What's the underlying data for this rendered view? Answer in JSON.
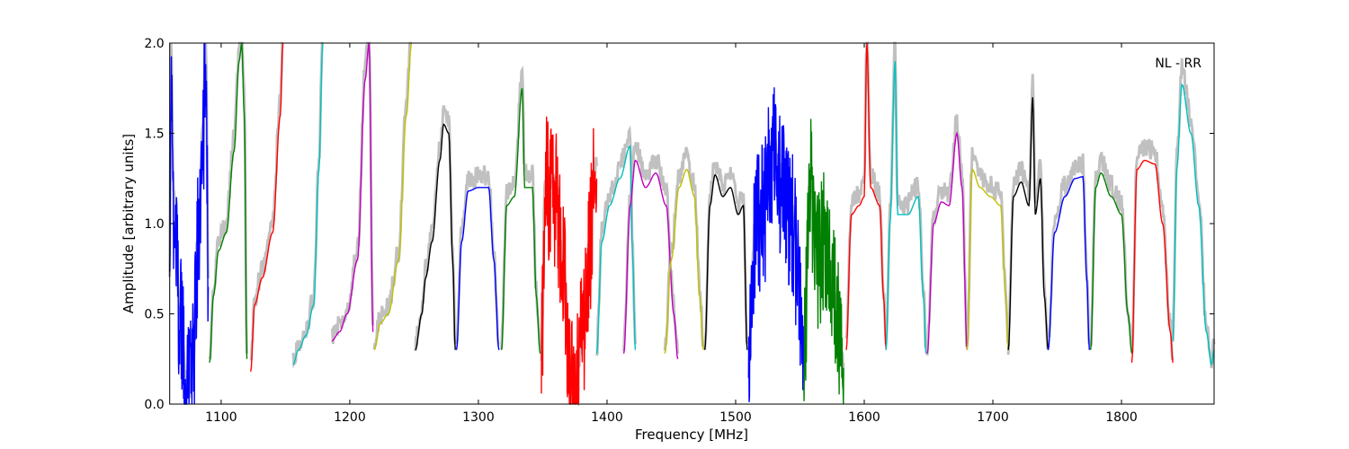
{
  "chart_data": {
    "type": "line",
    "title": "",
    "annotation": "NL - RR",
    "xlabel": "Frequency [MHz]",
    "ylabel": "Amplitude [arbitrary units]",
    "xlim": [
      1060,
      1872
    ],
    "ylim": [
      0,
      2.0
    ],
    "xticks": [
      1100,
      1200,
      1300,
      1400,
      1500,
      1600,
      1700,
      1800
    ],
    "yticks": [
      0.0,
      0.5,
      1.0,
      1.5,
      2.0
    ],
    "ytick_labels": [
      "0.0",
      "0.5",
      "1.0",
      "1.5",
      "2.0"
    ],
    "grid": false,
    "background_color": "#c0c0c0",
    "series": [
      {
        "color": "#0000ff",
        "noisy": true,
        "points": [
          [
            1060,
            0.6
          ],
          [
            1061,
            2.0
          ],
          [
            1063,
            1.1
          ],
          [
            1068,
            0.5
          ],
          [
            1072,
            0.15
          ],
          [
            1075,
            0.02
          ],
          [
            1078,
            0.2
          ],
          [
            1082,
            0.9
          ],
          [
            1086,
            1.5
          ],
          [
            1088,
            2.0
          ],
          [
            1090,
            0.65
          ]
        ]
      },
      {
        "color": "#008000",
        "noisy": false,
        "points": [
          [
            1091,
            0.23
          ],
          [
            1094,
            0.6
          ],
          [
            1098,
            0.85
          ],
          [
            1104,
            0.95
          ],
          [
            1110,
            1.4
          ],
          [
            1114,
            1.9
          ],
          [
            1116,
            2.0
          ],
          [
            1118,
            1.6
          ],
          [
            1120,
            0.25
          ]
        ]
      },
      {
        "color": "#ff0000",
        "noisy": false,
        "points": [
          [
            1123,
            0.18
          ],
          [
            1126,
            0.55
          ],
          [
            1132,
            0.7
          ],
          [
            1140,
            0.95
          ],
          [
            1146,
            1.6
          ],
          [
            1148,
            2.0
          ]
        ]
      },
      {
        "color": "#00c0c0",
        "noisy": false,
        "points": [
          [
            1156,
            0.22
          ],
          [
            1160,
            0.3
          ],
          [
            1166,
            0.38
          ],
          [
            1172,
            0.55
          ],
          [
            1176,
            1.3
          ],
          [
            1179,
            2.0
          ]
        ]
      },
      {
        "color": "#c000c0",
        "noisy": false,
        "points": [
          [
            1186,
            0.35
          ],
          [
            1192,
            0.4
          ],
          [
            1198,
            0.5
          ],
          [
            1206,
            0.8
          ],
          [
            1212,
            1.8
          ],
          [
            1215,
            2.0
          ],
          [
            1218,
            0.4
          ]
        ]
      },
      {
        "color": "#c0c000",
        "noisy": false,
        "points": [
          [
            1219,
            0.3
          ],
          [
            1224,
            0.45
          ],
          [
            1230,
            0.5
          ],
          [
            1238,
            0.8
          ],
          [
            1244,
            1.6
          ],
          [
            1248,
            2.0
          ]
        ]
      },
      {
        "color": "#000000",
        "noisy": false,
        "points": [
          [
            1251,
            0.3
          ],
          [
            1256,
            0.5
          ],
          [
            1259,
            0.7
          ],
          [
            1264,
            0.9
          ],
          [
            1270,
            1.35
          ],
          [
            1273,
            1.55
          ],
          [
            1277,
            1.5
          ],
          [
            1280,
            0.8
          ],
          [
            1282,
            0.3
          ]
        ]
      },
      {
        "color": "#0000ff",
        "noisy": false,
        "points": [
          [
            1283,
            0.3
          ],
          [
            1287,
            0.9
          ],
          [
            1292,
            1.18
          ],
          [
            1300,
            1.2
          ],
          [
            1308,
            1.2
          ],
          [
            1312,
            0.8
          ],
          [
            1316,
            0.3
          ]
        ]
      },
      {
        "color": "#008000",
        "noisy": false,
        "points": [
          [
            1318,
            0.3
          ],
          [
            1322,
            1.1
          ],
          [
            1328,
            1.15
          ],
          [
            1334,
            1.75
          ],
          [
            1336,
            1.2
          ],
          [
            1342,
            1.2
          ],
          [
            1345,
            0.6
          ],
          [
            1348,
            0.28
          ]
        ]
      },
      {
        "color": "#ff0000",
        "noisy": true,
        "points": [
          [
            1349,
            0.25
          ],
          [
            1352,
            1.2
          ],
          [
            1360,
            1.15
          ],
          [
            1366,
            0.7
          ],
          [
            1372,
            0.15
          ],
          [
            1375,
            0.0
          ],
          [
            1380,
            0.3
          ],
          [
            1386,
            0.8
          ],
          [
            1390,
            1.2
          ],
          [
            1392,
            1.25
          ]
        ]
      },
      {
        "color": "#00c0c0",
        "noisy": false,
        "points": [
          [
            1392,
            0.28
          ],
          [
            1396,
            0.9
          ],
          [
            1402,
            1.1
          ],
          [
            1410,
            1.25
          ],
          [
            1418,
            1.43
          ],
          [
            1420,
            0.8
          ],
          [
            1422,
            0.3
          ]
        ]
      },
      {
        "color": "#c000c0",
        "noisy": false,
        "points": [
          [
            1413,
            0.28
          ],
          [
            1418,
            1.1
          ],
          [
            1422,
            1.35
          ],
          [
            1430,
            1.2
          ],
          [
            1438,
            1.28
          ],
          [
            1446,
            1.1
          ],
          [
            1452,
            0.5
          ],
          [
            1455,
            0.25
          ]
        ]
      },
      {
        "color": "#c0c000",
        "noisy": false,
        "points": [
          [
            1445,
            0.28
          ],
          [
            1450,
            0.8
          ],
          [
            1456,
            1.2
          ],
          [
            1462,
            1.3
          ],
          [
            1468,
            1.15
          ],
          [
            1472,
            0.6
          ],
          [
            1475,
            0.3
          ]
        ]
      },
      {
        "color": "#000000",
        "noisy": false,
        "points": [
          [
            1476,
            0.3
          ],
          [
            1480,
            1.1
          ],
          [
            1484,
            1.27
          ],
          [
            1490,
            1.15
          ],
          [
            1496,
            1.2
          ],
          [
            1502,
            1.05
          ],
          [
            1506,
            1.1
          ],
          [
            1509,
            0.3
          ]
        ]
      },
      {
        "color": "#0000ff",
        "noisy": true,
        "points": [
          [
            1510,
            0.3
          ],
          [
            1516,
            1.0
          ],
          [
            1522,
            1.05
          ],
          [
            1528,
            1.4
          ],
          [
            1536,
            1.2
          ],
          [
            1544,
            1.0
          ],
          [
            1550,
            0.6
          ],
          [
            1553,
            0.2
          ]
        ]
      },
      {
        "color": "#008000",
        "noisy": true,
        "points": [
          [
            1553,
            0.3
          ],
          [
            1558,
            1.2
          ],
          [
            1564,
            0.8
          ],
          [
            1570,
            0.9
          ],
          [
            1576,
            0.6
          ],
          [
            1580,
            0.4
          ],
          [
            1584,
            0.2
          ]
        ]
      },
      {
        "color": "#ff0000",
        "noisy": false,
        "points": [
          [
            1586,
            0.3
          ],
          [
            1590,
            1.05
          ],
          [
            1596,
            1.1
          ],
          [
            1600,
            1.15
          ],
          [
            1602,
            2.0
          ],
          [
            1605,
            1.2
          ],
          [
            1612,
            1.1
          ],
          [
            1615,
            0.6
          ],
          [
            1617,
            0.3
          ]
        ]
      },
      {
        "color": "#00c0c0",
        "noisy": false,
        "points": [
          [
            1617,
            0.3
          ],
          [
            1620,
            1.0
          ],
          [
            1624,
            1.9
          ],
          [
            1626,
            1.05
          ],
          [
            1634,
            1.05
          ],
          [
            1642,
            1.15
          ],
          [
            1646,
            0.6
          ],
          [
            1648,
            0.28
          ]
        ]
      },
      {
        "color": "#c000c0",
        "noisy": false,
        "points": [
          [
            1649,
            0.28
          ],
          [
            1654,
            1.0
          ],
          [
            1660,
            1.12
          ],
          [
            1666,
            1.1
          ],
          [
            1672,
            1.5
          ],
          [
            1676,
            1.2
          ],
          [
            1680,
            0.3
          ]
        ]
      },
      {
        "color": "#c0c000",
        "noisy": false,
        "points": [
          [
            1680,
            0.3
          ],
          [
            1684,
            1.3
          ],
          [
            1690,
            1.2
          ],
          [
            1698,
            1.15
          ],
          [
            1706,
            1.1
          ],
          [
            1710,
            0.6
          ],
          [
            1712,
            0.3
          ]
        ]
      },
      {
        "color": "#000000",
        "noisy": false,
        "points": [
          [
            1712,
            0.3
          ],
          [
            1716,
            1.15
          ],
          [
            1722,
            1.23
          ],
          [
            1728,
            1.1
          ],
          [
            1731,
            1.7
          ],
          [
            1733,
            1.05
          ],
          [
            1737,
            1.25
          ],
          [
            1740,
            0.6
          ],
          [
            1743,
            0.3
          ]
        ]
      },
      {
        "color": "#0000ff",
        "noisy": false,
        "points": [
          [
            1743,
            0.3
          ],
          [
            1748,
            0.95
          ],
          [
            1756,
            1.15
          ],
          [
            1764,
            1.25
          ],
          [
            1770,
            1.26
          ],
          [
            1773,
            0.7
          ],
          [
            1775,
            0.3
          ]
        ]
      },
      {
        "color": "#008000",
        "noisy": false,
        "points": [
          [
            1776,
            0.3
          ],
          [
            1780,
            1.2
          ],
          [
            1784,
            1.28
          ],
          [
            1792,
            1.15
          ],
          [
            1800,
            1.05
          ],
          [
            1805,
            0.5
          ],
          [
            1808,
            0.28
          ]
        ]
      },
      {
        "color": "#ff0000",
        "noisy": false,
        "points": [
          [
            1808,
            0.23
          ],
          [
            1812,
            1.3
          ],
          [
            1818,
            1.35
          ],
          [
            1826,
            1.33
          ],
          [
            1832,
            1.0
          ],
          [
            1838,
            0.4
          ],
          [
            1840,
            0.23
          ]
        ]
      },
      {
        "color": "#00c0c0",
        "noisy": false,
        "points": [
          [
            1840,
            0.35
          ],
          [
            1843,
            1.3
          ],
          [
            1847,
            1.77
          ],
          [
            1854,
            1.5
          ],
          [
            1860,
            1.1
          ],
          [
            1866,
            0.4
          ],
          [
            1870,
            0.22
          ],
          [
            1872,
            0.3
          ]
        ]
      }
    ]
  }
}
